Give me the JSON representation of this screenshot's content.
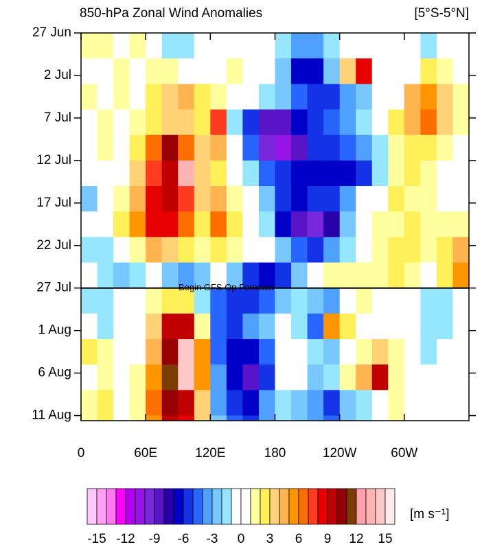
{
  "chart_data": {
    "type": "heatmap",
    "title": "850-hPa Zonal Wind Anomalies",
    "subtitle": "[5°S-5°N]",
    "x": [
      7.5,
      22.5,
      37.5,
      52.5,
      67.5,
      82.5,
      97.5,
      112.5,
      127.5,
      142.5,
      157.5,
      172.5,
      187.5,
      202.5,
      217.5,
      232.5,
      247.5,
      262.5,
      277.5,
      292.5,
      307.5,
      322.5,
      337.5,
      352.5
    ],
    "y": [
      1.5,
      4.5,
      7.5,
      10.5,
      13.5,
      16.5,
      19.5,
      22.5,
      25.5,
      28.5,
      31.5,
      34.5,
      37.5,
      40.5,
      43.5,
      46.5
    ],
    "z": [
      [
        1,
        1,
        0,
        1,
        -1,
        -2,
        -2,
        -1,
        0,
        0,
        0,
        -1,
        -2,
        -4,
        -4,
        -2,
        -1,
        -1,
        -1,
        0,
        -1,
        -2,
        -1,
        0
      ],
      [
        -1,
        0,
        1,
        0,
        1,
        1,
        0,
        -1,
        0,
        1,
        0,
        -1,
        -3,
        -7,
        -7,
        -3,
        3,
        8,
        0,
        -1,
        0,
        2,
        1,
        0
      ],
      [
        1,
        0,
        1,
        0,
        2,
        3,
        4,
        2,
        1,
        0,
        -1,
        -2,
        -3,
        -5,
        -6,
        -6,
        -4,
        -3,
        -1,
        0,
        4,
        5,
        3,
        1
      ],
      [
        0,
        1,
        0,
        1,
        2,
        3,
        3,
        2,
        7,
        -2,
        -6,
        -9,
        -9,
        -7,
        -6,
        -5,
        -4,
        -2,
        0,
        2,
        4,
        6,
        3,
        1
      ],
      [
        0,
        1,
        0,
        2,
        6,
        10,
        6,
        3,
        4,
        -1,
        -5,
        -10,
        -11,
        -9,
        -6,
        -6,
        -5,
        -4,
        -2,
        1,
        2,
        2,
        1,
        0
      ],
      [
        -1,
        0,
        0,
        3,
        7,
        9,
        13,
        3,
        2,
        0,
        -2,
        -5,
        -6,
        -7,
        -7,
        -7,
        -7,
        -6,
        -2,
        1,
        2,
        1,
        0,
        -1
      ],
      [
        -3,
        -1,
        1,
        4,
        8,
        9,
        7,
        3,
        4,
        1,
        -1,
        -3,
        -6,
        -7,
        -6,
        -6,
        -4,
        -1,
        0,
        2,
        1,
        1,
        0,
        0
      ],
      [
        -1,
        0,
        2,
        5,
        8,
        8,
        6,
        2,
        6,
        2,
        0,
        -2,
        -7,
        -9,
        -10,
        -8,
        -3,
        0,
        1,
        1,
        2,
        1,
        1,
        1
      ],
      [
        -2,
        -2,
        -1,
        1,
        4,
        3,
        2,
        1,
        2,
        1,
        0,
        -1,
        -3,
        -5,
        -6,
        -4,
        -2,
        0,
        1,
        2,
        2,
        1,
        2,
        4
      ],
      [
        -1,
        -2,
        -3,
        -2,
        -1,
        -3,
        -4,
        -3,
        -1,
        -3,
        -6,
        -7,
        -6,
        -3,
        0,
        1,
        1,
        1,
        1,
        2,
        1,
        0,
        2,
        5
      ],
      [
        -2,
        -2,
        -1,
        -1,
        1,
        2,
        2,
        -2,
        -5,
        -6,
        -6,
        -5,
        -3,
        -2,
        -3,
        -4,
        -1,
        1,
        0,
        0,
        -1,
        -2,
        -2,
        -1
      ],
      [
        -1,
        -2,
        -1,
        0,
        3,
        9,
        9,
        1,
        -5,
        -6,
        -4,
        -3,
        -1,
        -2,
        -5,
        5,
        2,
        0,
        -1,
        0,
        -1,
        -2,
        -2,
        -1
      ],
      [
        2,
        1,
        0,
        0,
        4,
        10,
        14,
        5,
        -5,
        -7,
        -7,
        -5,
        0,
        0,
        -2,
        -3,
        -1,
        1,
        3,
        1,
        -1,
        -2,
        -1,
        0
      ],
      [
        0,
        1,
        0,
        1,
        5,
        11,
        14,
        5,
        -4,
        -7,
        -9,
        -6,
        -1,
        0,
        -3,
        -2,
        1,
        4,
        9,
        1,
        -1,
        -1,
        0,
        0
      ],
      [
        1,
        2,
        0,
        1,
        6,
        10,
        9,
        3,
        -4,
        -6,
        -7,
        -4,
        -2,
        -3,
        -4,
        -6,
        -3,
        -2,
        0,
        1,
        0,
        0,
        0,
        0
      ],
      [
        1,
        2,
        0,
        1,
        5,
        9,
        8,
        3,
        -3,
        -5,
        -6,
        -4,
        -2,
        -3,
        -4,
        -5,
        -3,
        -2,
        0,
        1,
        0,
        0,
        0,
        0
      ]
    ],
    "xlim": [
      0,
      360
    ],
    "xticks": [
      0,
      {
        "value": 60,
        "label": "60E"
      },
      {
        "value": 120,
        "label": "120E"
      },
      180,
      {
        "value": 240,
        "label": "120W"
      },
      {
        "value": 300,
        "label": "60W"
      }
    ],
    "ylim": [
      0,
      45.6
    ],
    "y_reversed": true,
    "yticks": [
      {
        "value": 0,
        "label": "27 Jun"
      },
      {
        "value": 5,
        "label": "2 Jul"
      },
      {
        "value": 10,
        "label": "7 Jul"
      },
      {
        "value": 15,
        "label": "12 Jul"
      },
      {
        "value": 20,
        "label": "17 Jul"
      },
      {
        "value": 25,
        "label": "22 Jul"
      },
      {
        "value": 30,
        "label": "27 Jul"
      },
      {
        "value": 35,
        "label": "1 Aug"
      },
      {
        "value": 40,
        "label": "6 Aug"
      },
      {
        "value": 45,
        "label": "11 Aug"
      }
    ],
    "annotation": {
      "text": "Begin GFS Op Forecast",
      "y": 30
    },
    "colorbar": {
      "units": "[m s⁻¹]",
      "levels": [
        -15,
        -14,
        -13,
        -12,
        -11,
        -10,
        -9,
        -8,
        -7,
        -6,
        -5,
        -4,
        -3,
        -2,
        -1,
        0,
        1,
        2,
        3,
        4,
        5,
        6,
        7,
        8,
        9,
        10,
        11,
        12,
        13,
        14,
        15
      ],
      "colors": [
        "#ffc8ff",
        "#ffa0f5",
        "#ff78f0",
        "#ff00ff",
        "#b400f0",
        "#9614e6",
        "#7828dc",
        "#5a14c8",
        "#2800aa",
        "#0000c8",
        "#1432e6",
        "#2864ff",
        "#50a0ff",
        "#78c8ff",
        "#96e6ff",
        "#ffffff",
        "#ffffff",
        "#ffffa0",
        "#fff05a",
        "#ffd278",
        "#ffb450",
        "#ff9600",
        "#ff6e00",
        "#ff3c1e",
        "#e60000",
        "#c00000",
        "#960000",
        "#7a3c00",
        "#ffa0aa",
        "#ffb4b4",
        "#ffc8c8",
        "#ffebeb"
      ],
      "ticks": [
        -15,
        -12,
        -9,
        -6,
        -3,
        0,
        3,
        6,
        9,
        12,
        15
      ]
    }
  }
}
